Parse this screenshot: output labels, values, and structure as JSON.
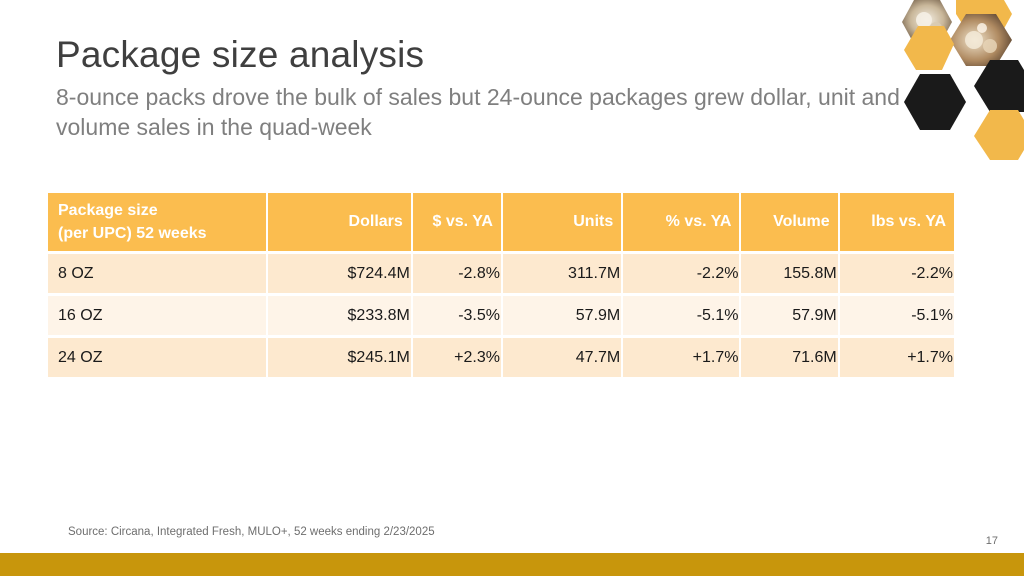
{
  "slide": {
    "title": "Package size analysis",
    "subtitle": "8-ounce packs drove the bulk of sales but 24-ounce packages grew dollar, unit and volume sales in the quad-week",
    "source": "Source: Circana, Integrated Fresh, MULO+, 52 weeks ending 2/23/2025",
    "page_number": "17"
  },
  "table": {
    "headers": {
      "package_line1": "Package size",
      "package_line2": "(per UPC) 52 weeks",
      "dollars": "Dollars",
      "dollars_vs_ya": "$ vs. YA",
      "units": "Units",
      "units_vs_ya": "% vs. YA",
      "volume": "Volume",
      "volume_vs_ya": "lbs vs. YA"
    },
    "rows": [
      {
        "size": "8 OZ",
        "dollars": "$724.4M",
        "dollars_vs_ya": "-2.8%",
        "units": "311.7M",
        "units_vs_ya": "-2.2%",
        "volume": "155.8M",
        "volume_vs_ya": "-2.2%"
      },
      {
        "size": "16 OZ",
        "dollars": "$233.8M",
        "dollars_vs_ya": "-3.5%",
        "units": "57.9M",
        "units_vs_ya": "-5.1%",
        "volume": "57.9M",
        "volume_vs_ya": "-5.1%"
      },
      {
        "size": "24 OZ",
        "dollars": "$245.1M",
        "dollars_vs_ya": "+2.3%",
        "units": "47.7M",
        "units_vs_ya": "+1.7%",
        "volume": "71.6M",
        "volume_vs_ya": "+1.7%"
      }
    ]
  },
  "colors": {
    "header_fill": "#fbbd4f",
    "row_fill_dark": "#fde9cf",
    "row_fill_light": "#fef4e8",
    "bottom_bar": "#c8960c"
  },
  "decoration": {
    "image": "hexagon-mushroom-photo-collage"
  }
}
